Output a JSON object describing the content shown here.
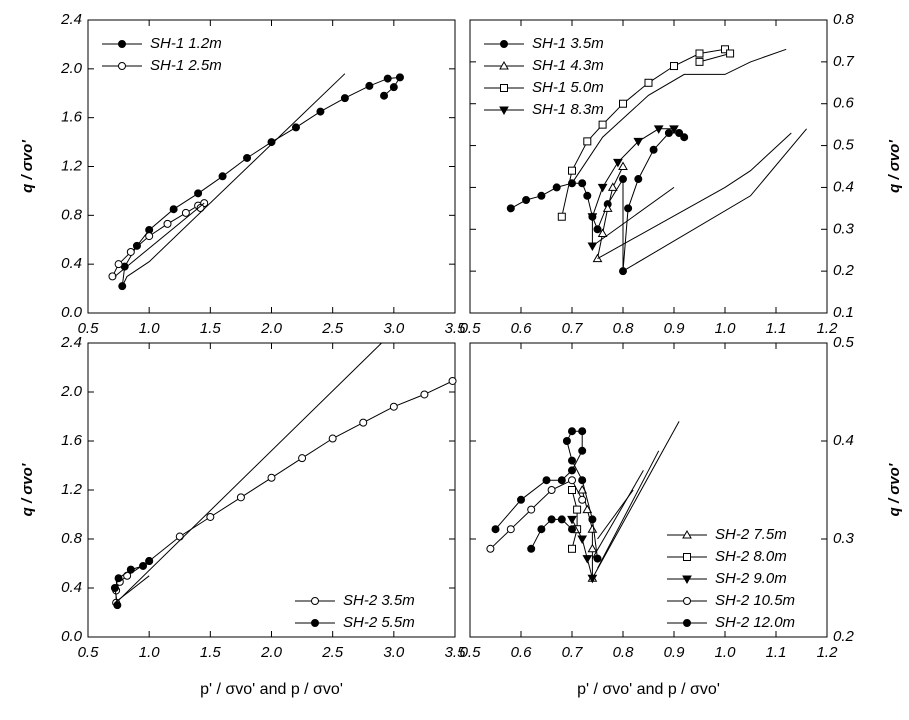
{
  "chart_data": [
    {
      "type": "line",
      "xlim": [
        0.5,
        3.5
      ],
      "ylim": [
        0,
        2.4
      ],
      "y_axis_side": "left",
      "legend": "upper left",
      "ylabel": "q / σvo'",
      "xticks": [
        0.5,
        {
          "value": 1,
          "label": "1.0"
        },
        1.5,
        {
          "value": 2,
          "label": "2.0"
        },
        2.5,
        {
          "value": 3,
          "label": "3.0"
        },
        3.5
      ],
      "yticks": [
        {
          "value": 0,
          "label": "0.0"
        },
        0.4,
        0.8,
        1.2,
        1.6,
        {
          "value": 2,
          "label": "2.0"
        },
        2.4
      ],
      "series": [
        {
          "name": "SH-1 1.2m",
          "marker": "circle-filled",
          "color": "#000000",
          "x": [
            0.78,
            0.8,
            0.9,
            1.0,
            1.2,
            1.4,
            1.6,
            1.8,
            2.0,
            2.2,
            2.4,
            2.6,
            2.8,
            2.95,
            3.05,
            3.0,
            2.92
          ],
          "values": [
            0.22,
            0.38,
            0.55,
            0.68,
            0.85,
            0.98,
            1.12,
            1.27,
            1.4,
            1.52,
            1.65,
            1.76,
            1.86,
            1.92,
            1.93,
            1.85,
            1.78
          ]
        },
        {
          "name": "SH-1 2.5m",
          "marker": "circle-open",
          "color": "#000000",
          "x": [
            0.7,
            0.75,
            0.85,
            1.0,
            1.15,
            1.3,
            1.4,
            1.45,
            1.42
          ],
          "values": [
            0.3,
            0.4,
            0.5,
            0.63,
            0.73,
            0.82,
            0.88,
            0.9,
            0.86
          ]
        },
        {
          "marker": "none",
          "color": "#000000",
          "x": [
            0.78,
            0.82,
            1.0,
            2.6
          ],
          "values": [
            0.22,
            0.3,
            0.42,
            1.96
          ]
        },
        {
          "marker": "none",
          "color": "#000000",
          "x": [
            0.72,
            1.45
          ],
          "values": [
            0.3,
            0.9
          ]
        }
      ]
    },
    {
      "type": "line",
      "xlim": [
        0.5,
        1.2
      ],
      "ylim": [
        0.1,
        0.8
      ],
      "y_axis_side": "right",
      "legend": "upper left",
      "ylabel": "q / σvo'",
      "xticks": [
        0.5,
        0.6,
        0.7,
        0.8,
        0.9,
        {
          "value": 1,
          "label": "1.0"
        },
        1.1,
        1.2
      ],
      "yticks": [
        0.1,
        0.2,
        0.3,
        0.4,
        0.5,
        0.6,
        0.7,
        0.8
      ],
      "series": [
        {
          "name": "SH-1 3.5m",
          "marker": "circle-filled",
          "color": "#000000",
          "x": [
            0.58,
            0.61,
            0.64,
            0.67,
            0.7,
            0.72,
            0.73,
            0.74,
            0.75,
            0.77,
            0.8,
            0.8,
            0.81,
            0.83,
            0.86,
            0.89,
            0.91,
            0.92
          ],
          "values": [
            0.35,
            0.37,
            0.38,
            0.4,
            0.41,
            0.41,
            0.38,
            0.33,
            0.3,
            0.36,
            0.42,
            0.2,
            0.35,
            0.42,
            0.49,
            0.53,
            0.53,
            0.52
          ]
        },
        {
          "name": "SH-1 4.3m",
          "marker": "triangle-open",
          "color": "#000000",
          "x": [
            0.75,
            0.76,
            0.77,
            0.78,
            0.8
          ],
          "values": [
            0.23,
            0.29,
            0.35,
            0.4,
            0.45
          ]
        },
        {
          "name": "SH-1 5.0m",
          "marker": "square-open",
          "color": "#000000",
          "x": [
            0.68,
            0.7,
            0.73,
            0.76,
            0.8,
            0.85,
            0.9,
            0.95,
            1.0,
            1.01,
            0.95
          ],
          "values": [
            0.33,
            0.44,
            0.51,
            0.55,
            0.6,
            0.65,
            0.69,
            0.72,
            0.73,
            0.72,
            0.7
          ]
        },
        {
          "name": "SH-1 8.3m",
          "marker": "triangle-down-filled",
          "color": "#000000",
          "x": [
            0.74,
            0.74,
            0.76,
            0.79,
            0.83,
            0.87,
            0.9
          ],
          "values": [
            0.26,
            0.33,
            0.4,
            0.46,
            0.51,
            0.54,
            0.54
          ]
        },
        {
          "marker": "none",
          "color": "#000000",
          "x": [
            0.7,
            0.76,
            0.85,
            0.92,
            1.0,
            1.05,
            1.12
          ],
          "values": [
            0.41,
            0.52,
            0.62,
            0.67,
            0.67,
            0.7,
            0.73
          ]
        },
        {
          "marker": "none",
          "color": "#000000",
          "x": [
            0.74,
            0.9
          ],
          "values": [
            0.26,
            0.4
          ]
        },
        {
          "marker": "none",
          "color": "#000000",
          "x": [
            0.75,
            1.0,
            1.05,
            1.13
          ],
          "values": [
            0.23,
            0.4,
            0.44,
            0.53
          ]
        },
        {
          "marker": "none",
          "color": "#000000",
          "x": [
            0.8,
            1.05,
            1.16
          ],
          "values": [
            0.2,
            0.38,
            0.54
          ]
        }
      ]
    },
    {
      "type": "line",
      "xlim": [
        0.5,
        3.5
      ],
      "ylim": [
        0,
        2.4
      ],
      "y_axis_side": "left",
      "legend": "lower right",
      "ylabel": "q / σvo'",
      "xlabel": "p' / σvo' and p / σvo'",
      "xticks": [
        0.5,
        {
          "value": 1,
          "label": "1.0"
        },
        1.5,
        {
          "value": 2,
          "label": "2.0"
        },
        2.5,
        {
          "value": 3,
          "label": "3.0"
        },
        3.5
      ],
      "yticks": [
        {
          "value": 0,
          "label": "0.0"
        },
        0.4,
        0.8,
        1.2,
        1.6,
        {
          "value": 2,
          "label": "2.0"
        },
        2.4
      ],
      "series": [
        {
          "name": "SH-2 3.5m",
          "marker": "circle-open",
          "color": "#000000",
          "x": [
            0.73,
            0.73,
            0.76,
            0.82,
            1.0,
            1.25,
            1.5,
            1.75,
            2.0,
            2.25,
            2.5,
            2.75,
            3.0,
            3.25,
            3.48
          ],
          "values": [
            0.28,
            0.38,
            0.45,
            0.5,
            0.62,
            0.82,
            0.98,
            1.14,
            1.3,
            1.46,
            1.62,
            1.75,
            1.88,
            1.98,
            2.09
          ]
        },
        {
          "name": "SH-2 5.5m",
          "marker": "circle-filled",
          "color": "#000000",
          "x": [
            0.74,
            0.72,
            0.75,
            0.85,
            0.95,
            1.0
          ],
          "values": [
            0.26,
            0.4,
            0.48,
            0.55,
            0.58,
            0.62
          ]
        },
        {
          "marker": "none",
          "color": "#000000",
          "x": [
            0.75,
            2.9
          ],
          "values": [
            0.3,
            2.4
          ]
        },
        {
          "marker": "none",
          "color": "#000000",
          "x": [
            0.72,
            1.0
          ],
          "values": [
            0.28,
            0.5
          ]
        }
      ]
    },
    {
      "type": "line",
      "xlim": [
        0.5,
        1.2
      ],
      "ylim": [
        0.2,
        0.5
      ],
      "y_axis_side": "right",
      "legend": "lower right",
      "ylabel": "q / σvo'",
      "xlabel": "p' / σvo' and p / σvo'",
      "xticks": [
        0.5,
        0.6,
        0.7,
        0.8,
        0.9,
        {
          "value": 1,
          "label": "1.0"
        },
        1.1,
        1.2
      ],
      "yticks": [
        0.2,
        0.3,
        0.4,
        0.5
      ],
      "series": [
        {
          "name": "SH-2 7.5m",
          "marker": "triangle-open",
          "color": "#000000",
          "x": [
            0.74,
            0.74,
            0.74,
            0.73,
            0.72
          ],
          "values": [
            0.26,
            0.29,
            0.31,
            0.33,
            0.35
          ]
        },
        {
          "name": "SH-2 8.0m",
          "marker": "square-open",
          "color": "#000000",
          "x": [
            0.7,
            0.71,
            0.71,
            0.7
          ],
          "values": [
            0.29,
            0.31,
            0.33,
            0.35
          ]
        },
        {
          "name": "SH-2 9.0m",
          "marker": "triangle-down-filled",
          "color": "#000000",
          "x": [
            0.74,
            0.73,
            0.72,
            0.7
          ],
          "values": [
            0.26,
            0.28,
            0.3,
            0.32
          ]
        },
        {
          "name": "SH-2 10.5m",
          "marker": "circle-open",
          "color": "#000000",
          "x": [
            0.54,
            0.58,
            0.62,
            0.66,
            0.7,
            0.72
          ],
          "values": [
            0.29,
            0.31,
            0.33,
            0.35,
            0.36,
            0.34
          ]
        },
        {
          "name": "SH-2 12.0m",
          "marker": "circle-filled",
          "color": "#000000",
          "x": [
            0.55,
            0.6,
            0.65,
            0.68,
            0.7,
            0.72,
            0.72,
            0.7,
            0.69,
            0.7,
            0.72,
            0.74,
            0.75,
            null,
            0.62,
            0.64,
            0.66,
            0.68,
            0.7
          ],
          "values": [
            0.31,
            0.34,
            0.36,
            0.36,
            0.37,
            0.39,
            0.41,
            0.41,
            0.4,
            0.38,
            0.36,
            0.32,
            0.28,
            null,
            0.29,
            0.31,
            0.32,
            0.32,
            0.31
          ]
        },
        {
          "marker": "none",
          "color": "#000000",
          "x": [
            0.74,
            0.91
          ],
          "values": [
            0.26,
            0.42
          ]
        },
        {
          "marker": "none",
          "color": "#000000",
          "x": [
            0.75,
            0.87
          ],
          "values": [
            0.27,
            0.39
          ]
        },
        {
          "marker": "none",
          "color": "#000000",
          "x": [
            0.74,
            0.84
          ],
          "values": [
            0.28,
            0.37
          ]
        },
        {
          "marker": "none",
          "color": "#000000",
          "x": [
            0.75,
            0.82
          ],
          "values": [
            0.3,
            0.35
          ]
        }
      ]
    }
  ]
}
